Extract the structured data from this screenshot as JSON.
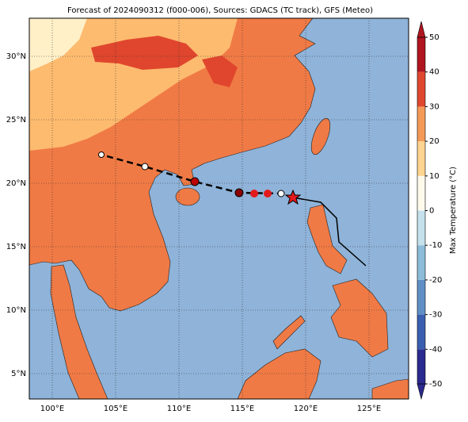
{
  "title": "Forecast of 2024090312 (f000-006), Sources: GDACS (TC track), GFS (Meteo)",
  "map": {
    "lon_ticks": [
      {
        "value": 100,
        "label": "100°E"
      },
      {
        "value": 105,
        "label": "105°E"
      },
      {
        "value": 110,
        "label": "110°E"
      },
      {
        "value": 115,
        "label": "115°E"
      },
      {
        "value": 120,
        "label": "120°E"
      },
      {
        "value": 125,
        "label": "125°E"
      }
    ],
    "lat_ticks": [
      {
        "value": 5,
        "label": "5°N"
      },
      {
        "value": 10,
        "label": "10°N"
      },
      {
        "value": 15,
        "label": "15°N"
      },
      {
        "value": 20,
        "label": "20°N"
      },
      {
        "value": 25,
        "label": "25°N"
      },
      {
        "value": 30,
        "label": "30°N"
      }
    ]
  },
  "colorbar": {
    "label": "Max Temperature (°C)",
    "lim": [
      -50,
      50
    ],
    "ticks": [
      -50,
      -40,
      -30,
      -20,
      -10,
      0,
      10,
      20,
      30,
      40,
      50
    ],
    "colors": [
      "#2b2a8f",
      "#3b5fb0",
      "#5f8fc5",
      "#8dbcd9",
      "#c4e1ec",
      "#fdfaec",
      "#fed490",
      "#f49a58",
      "#e0472f",
      "#b0151f"
    ]
  }
}
